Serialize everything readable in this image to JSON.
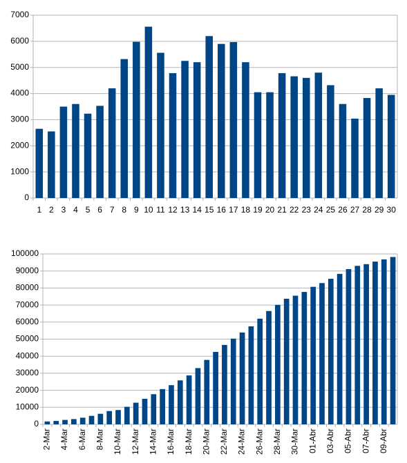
{
  "chart_data": [
    {
      "type": "bar",
      "color": "#004586",
      "grid": true,
      "categories": [
        "1",
        "2",
        "3",
        "4",
        "5",
        "6",
        "7",
        "8",
        "9",
        "10",
        "11",
        "12",
        "13",
        "14",
        "15",
        "16",
        "17",
        "18",
        "19",
        "20",
        "21",
        "22",
        "23",
        "24",
        "25",
        "26",
        "27",
        "28",
        "29",
        "30"
      ],
      "values": [
        2650,
        2550,
        3500,
        3600,
        3230,
        3530,
        4200,
        5320,
        5980,
        6560,
        5560,
        4780,
        5250,
        5200,
        6200,
        5900,
        5970,
        5200,
        4050,
        4050,
        4780,
        4660,
        4600,
        4800,
        4320,
        3600,
        3040,
        3830,
        4200,
        3950
      ],
      "ylim": [
        0,
        7000
      ],
      "yticks": [
        0,
        1000,
        2000,
        3000,
        4000,
        5000,
        6000,
        7000
      ]
    },
    {
      "type": "bar",
      "color": "#004586",
      "grid": true,
      "categories": [
        "2-Mar",
        null,
        "4-Mar",
        null,
        "6-Mar",
        null,
        "8-Mar",
        null,
        "10-Mar",
        null,
        "12-Mar",
        null,
        "14-Mar",
        null,
        "16-Mar",
        null,
        "18-Mar",
        null,
        "20-Mar",
        null,
        "22-Mar",
        null,
        "24-Mar",
        null,
        "26-Mar",
        null,
        "28-Mar",
        null,
        "30-Mar",
        null,
        "01-Abr",
        null,
        "03-Abr",
        null,
        "05-Abr",
        null,
        "07-Abr",
        null,
        "09-Abr",
        null
      ],
      "values": [
        1700,
        2000,
        2600,
        3100,
        3900,
        5000,
        6200,
        7800,
        8400,
        10300,
        12700,
        15000,
        17700,
        20700,
        23000,
        25800,
        28700,
        33000,
        37800,
        42500,
        46600,
        50300,
        53900,
        57500,
        62000,
        66500,
        70100,
        73700,
        75500,
        77700,
        80700,
        82900,
        85400,
        88300,
        91100,
        93000,
        94000,
        95500,
        96800,
        98200
      ],
      "ylim": [
        0,
        100000
      ],
      "yticks": [
        0,
        10000,
        20000,
        30000,
        40000,
        50000,
        60000,
        70000,
        80000,
        90000,
        100000
      ]
    }
  ]
}
